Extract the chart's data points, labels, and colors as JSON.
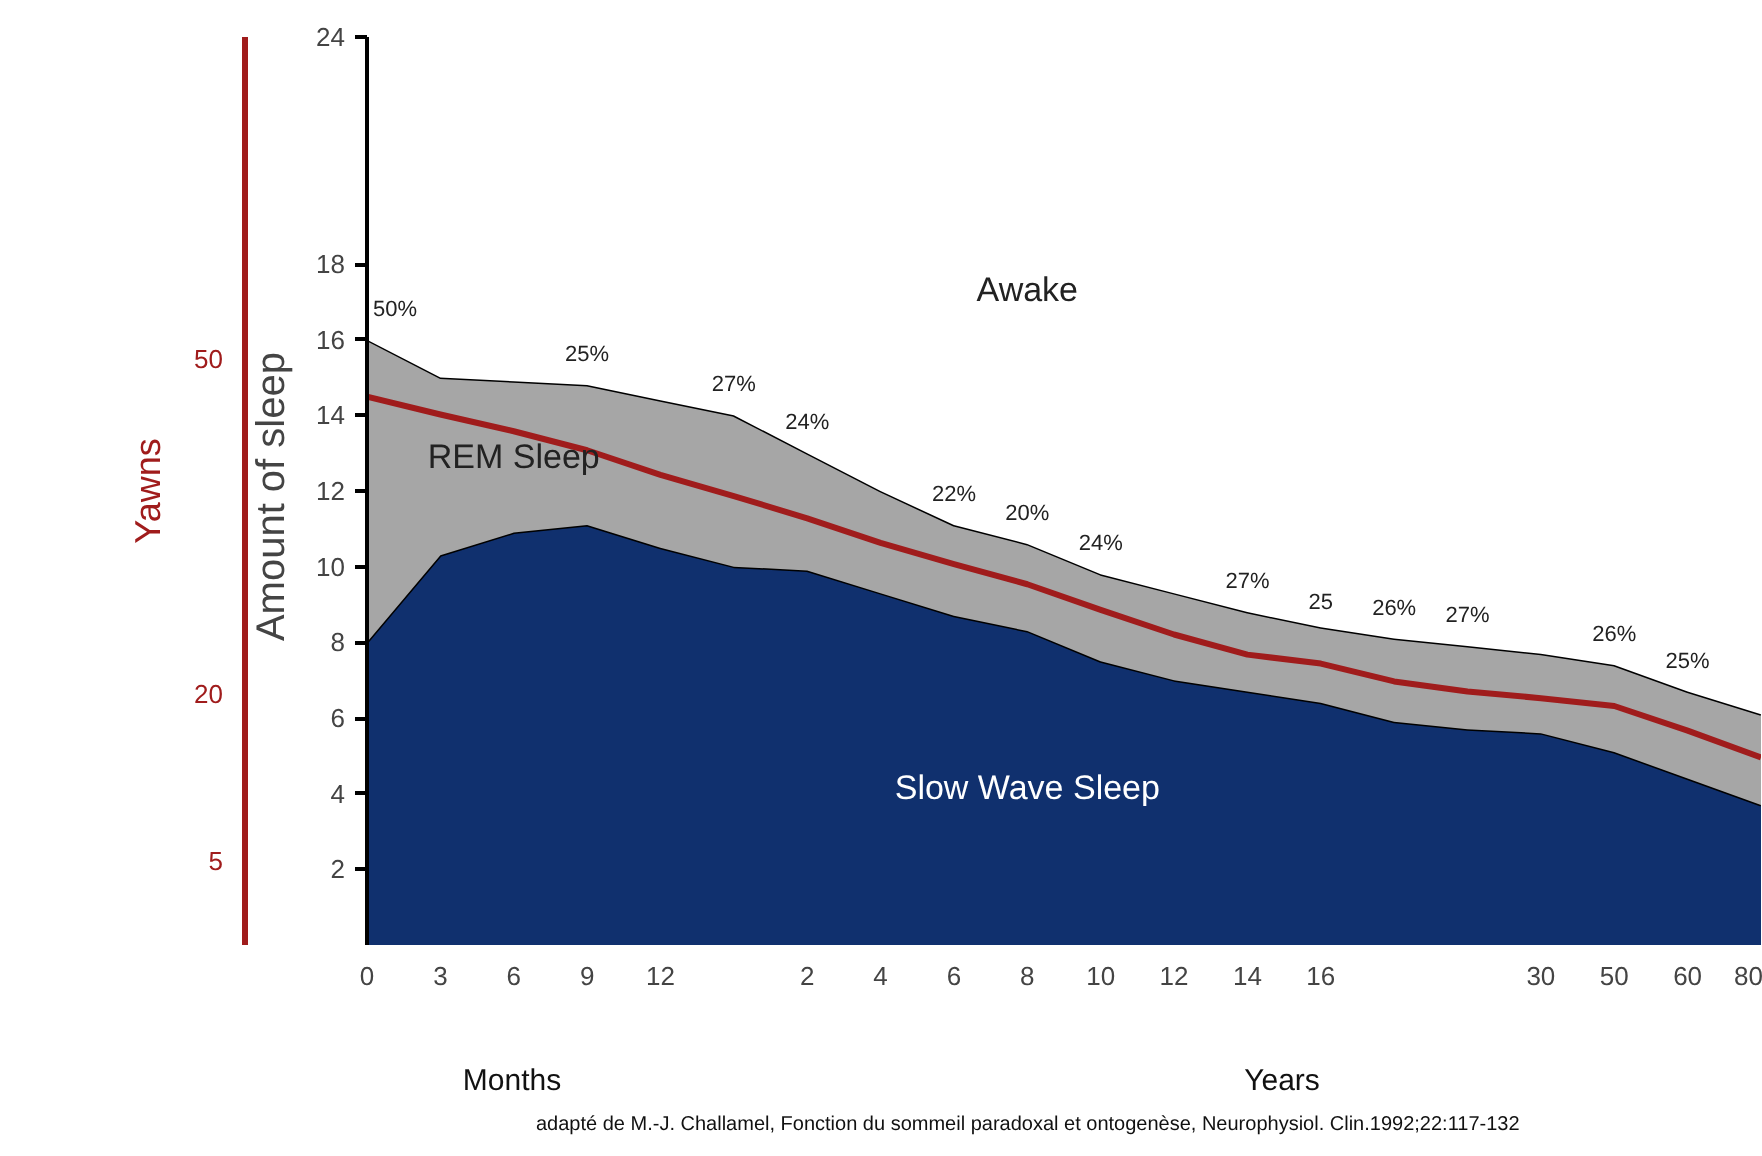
{
  "chart_data": {
    "type": "area",
    "stacked": true,
    "ylabel": "Amount of  sleep",
    "y2label": "Yawns",
    "categories": [
      "0",
      "3",
      "6",
      "9",
      "12",
      null,
      "2",
      "4",
      "6",
      "8",
      "10",
      "12",
      "14",
      "16",
      null,
      null,
      "30",
      "50",
      "60",
      "80"
    ],
    "series": [
      {
        "name": "Slow Wave Sleep",
        "color": "#10306e",
        "values": [
          8.0,
          10.3,
          10.9,
          11.1,
          10.5,
          10.0,
          9.9,
          9.3,
          8.7,
          8.3,
          7.5,
          7.0,
          6.7,
          6.4,
          5.9,
          5.7,
          5.6,
          5.1,
          4.4,
          3.7
        ]
      },
      {
        "name": "REM Sleep",
        "color": "#a6a6a6",
        "values": [
          8.0,
          4.7,
          4.0,
          3.7,
          3.9,
          4.0,
          3.1,
          2.7,
          2.4,
          2.3,
          2.3,
          2.3,
          2.1,
          2.0,
          2.2,
          2.2,
          2.1,
          2.3,
          2.3,
          2.4
        ]
      },
      {
        "name": "Awake",
        "color": "#ffffff",
        "values": [
          8.0,
          9.0,
          9.1,
          9.2,
          9.6,
          10.0,
          11.0,
          12.0,
          12.9,
          13.4,
          14.2,
          14.7,
          15.2,
          15.6,
          15.9,
          16.1,
          16.3,
          16.6,
          17.3,
          17.9
        ]
      },
      {
        "type": "line",
        "axis": "y2",
        "color": "#a01c1c",
        "values": [
          46.6,
          45.0,
          43.5,
          41.8,
          39.6,
          37.7,
          35.7,
          33.5,
          31.6,
          29.8,
          27.5,
          25.3,
          23.5,
          22.7,
          21.1,
          20.2,
          19.6,
          18.9,
          16.7,
          14.3
        ]
      }
    ],
    "ylim": [
      0,
      24
    ],
    "yticks": [
      2,
      4,
      6,
      8,
      10,
      12,
      14,
      16,
      18,
      24
    ],
    "y2lim": [
      -2.5,
      78.8
    ],
    "y2ticks": [
      5,
      20,
      50
    ],
    "annotations": [
      {
        "text": "50%",
        "x": "0",
        "y": 16.0
      },
      {
        "text": "25%",
        "x": "9",
        "y": 14.8
      },
      {
        "text": "27%",
        "y": 14.0
      },
      {
        "text": "24%",
        "x": "2",
        "y": 13.0
      },
      {
        "text": "22%",
        "y": 11.1
      },
      {
        "text": "20%",
        "x": "8",
        "y": 10.6
      },
      {
        "text": "24%",
        "x": "10",
        "y": 9.8
      },
      {
        "text": "27%",
        "x": "14",
        "y": 8.8
      },
      {
        "text": "25",
        "x": "16",
        "y": 8.4
      },
      {
        "text": "26%",
        "y": 8.1
      },
      {
        "text": "27%",
        "y": 7.9
      },
      {
        "text": "26%",
        "x": "50",
        "y": 7.4
      },
      {
        "text": "25%",
        "x": "60",
        "y": 6.7
      },
      "Months",
      "Years",
      "adapté de M.-J. Challamel, Fonction du sommeil paradoxal et ontogenèse, Neurophysiol. Clin.1992;22:117-132"
    ]
  }
}
